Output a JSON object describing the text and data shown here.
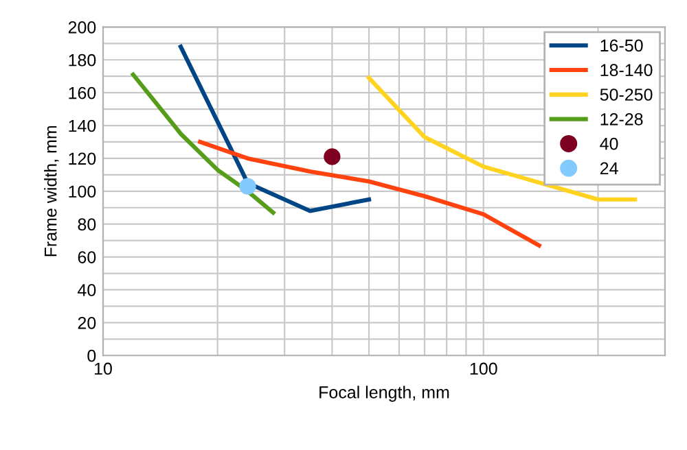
{
  "chart_data": {
    "type": "line",
    "xlabel": "Focal length, mm",
    "ylabel": "Frame width, mm",
    "log": "x",
    "xlim": [
      10,
      300
    ],
    "xticks": [
      10,
      {
        "value": 20,
        "label": null
      },
      {
        "value": 30,
        "label": null
      },
      {
        "value": 40,
        "label": null
      },
      {
        "value": 50,
        "label": null
      },
      {
        "value": 60,
        "label": null
      },
      {
        "value": 70,
        "label": null
      },
      {
        "value": 80,
        "label": null
      },
      {
        "value": 90,
        "label": null
      },
      100,
      {
        "value": 200,
        "label": null
      },
      {
        "value": 300,
        "label": null
      }
    ],
    "ylim": [
      0,
      200
    ],
    "yticks": [
      0,
      {
        "value": 10,
        "label": null
      },
      20,
      {
        "value": 30,
        "label": null
      },
      40,
      {
        "value": 50,
        "label": null
      },
      60,
      {
        "value": 70,
        "label": null
      },
      80,
      {
        "value": 90,
        "label": null
      },
      100,
      {
        "value": 110,
        "label": null
      },
      120,
      {
        "value": 130,
        "label": null
      },
      140,
      {
        "value": 150,
        "label": null
      },
      160,
      {
        "value": 170,
        "label": null
      },
      180,
      {
        "value": 190,
        "label": null
      },
      200
    ],
    "grid": true,
    "legend": "top right",
    "marker": "none",
    "series": [
      {
        "name": "16-50",
        "color": "#004586",
        "x": [
          16,
          24,
          35,
          50
        ],
        "values": [
          188,
          105,
          88,
          95
        ]
      },
      {
        "name": "18-140",
        "color": "#ff420e",
        "x": [
          18,
          24,
          35,
          50,
          70,
          100,
          140
        ],
        "values": [
          130,
          120,
          112,
          106,
          97,
          86,
          67
        ]
      },
      {
        "name": "50-250",
        "color": "#ffd320",
        "x": [
          50,
          70,
          100,
          200,
          250
        ],
        "values": [
          169,
          133,
          115,
          95,
          95
        ]
      },
      {
        "name": "12-28",
        "color": "#579d1c",
        "x": [
          12,
          16,
          20,
          24,
          28
        ],
        "values": [
          171,
          135,
          113,
          100,
          87
        ]
      },
      {
        "name": "40",
        "type": "scatter",
        "marker": "circle",
        "color": "#7e0021",
        "x": [
          40
        ],
        "values": [
          121
        ]
      },
      {
        "name": "24",
        "type": "scatter",
        "marker": "circle",
        "color": "#83caff",
        "x": [
          24
        ],
        "values": [
          103
        ]
      }
    ]
  }
}
